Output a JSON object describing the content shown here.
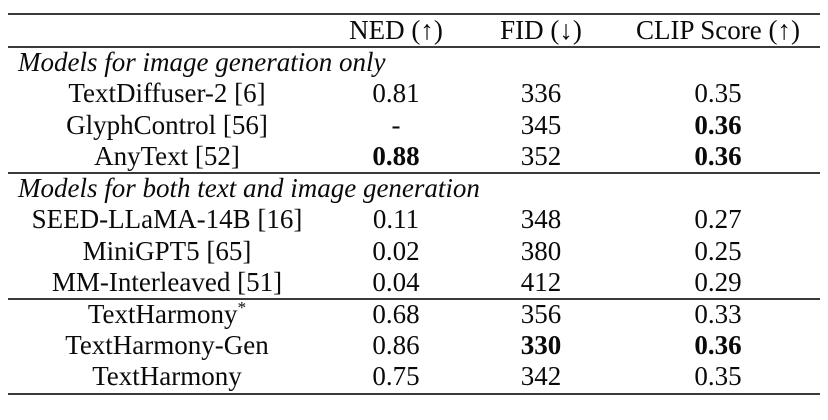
{
  "table": {
    "header": {
      "model": "",
      "ned": "NED (↑)",
      "fid": "FID (↓)",
      "clip": "CLIP Score (↑)"
    },
    "sections": [
      {
        "title": "Models for image generation only",
        "rows": [
          {
            "name": "TextDiffuser-2 [6]",
            "ned": "0.81",
            "fid": "336",
            "clip": "0.35",
            "bold": []
          },
          {
            "name": "GlyphControl [56]",
            "ned": "-",
            "fid": "345",
            "clip": "0.36",
            "bold": [
              "clip"
            ]
          },
          {
            "name": "AnyText [52]",
            "ned": "0.88",
            "fid": "352",
            "clip": "0.36",
            "bold": [
              "ned",
              "clip"
            ]
          }
        ]
      },
      {
        "title": "Models for both text and image generation",
        "rows": [
          {
            "name": "SEED-LLaMA-14B [16]",
            "ned": "0.11",
            "fid": "348",
            "clip": "0.27",
            "bold": []
          },
          {
            "name": "MiniGPT5 [65]",
            "ned": "0.02",
            "fid": "380",
            "clip": "0.25",
            "bold": []
          },
          {
            "name": "MM-Interleaved [51]",
            "ned": "0.04",
            "fid": "412",
            "clip": "0.29",
            "bold": []
          }
        ]
      },
      {
        "title": "",
        "rows": [
          {
            "name": "TextHarmony",
            "sup": "*",
            "ned": "0.68",
            "fid": "356",
            "clip": "0.33",
            "bold": []
          },
          {
            "name": "TextHarmony-Gen",
            "sup": "",
            "ned": "0.86",
            "fid": "330",
            "clip": "0.36",
            "bold": [
              "fid",
              "clip"
            ]
          },
          {
            "name": "TextHarmony",
            "sup": "",
            "ned": "0.75",
            "fid": "342",
            "clip": "0.35",
            "bold": []
          }
        ]
      }
    ]
  }
}
